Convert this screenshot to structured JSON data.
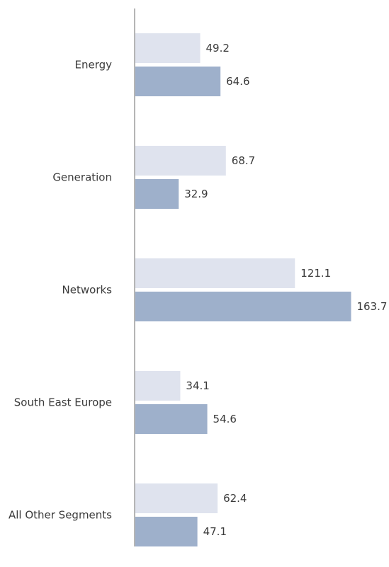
{
  "chart_data": {
    "type": "bar",
    "orientation": "horizontal",
    "categories": [
      "Energy",
      "Generation",
      "Networks",
      "South East Europe",
      "All Other Segments"
    ],
    "series": [
      {
        "values": [
          49.2,
          68.7,
          121.1,
          34.1,
          62.4
        ],
        "color": "#dfe3ee"
      },
      {
        "values": [
          64.6,
          32.9,
          163.7,
          54.6,
          47.1
        ],
        "color": "#9eb0cb"
      }
    ],
    "grid": false,
    "legend": "none",
    "axis_color": "#b5b5b5"
  }
}
